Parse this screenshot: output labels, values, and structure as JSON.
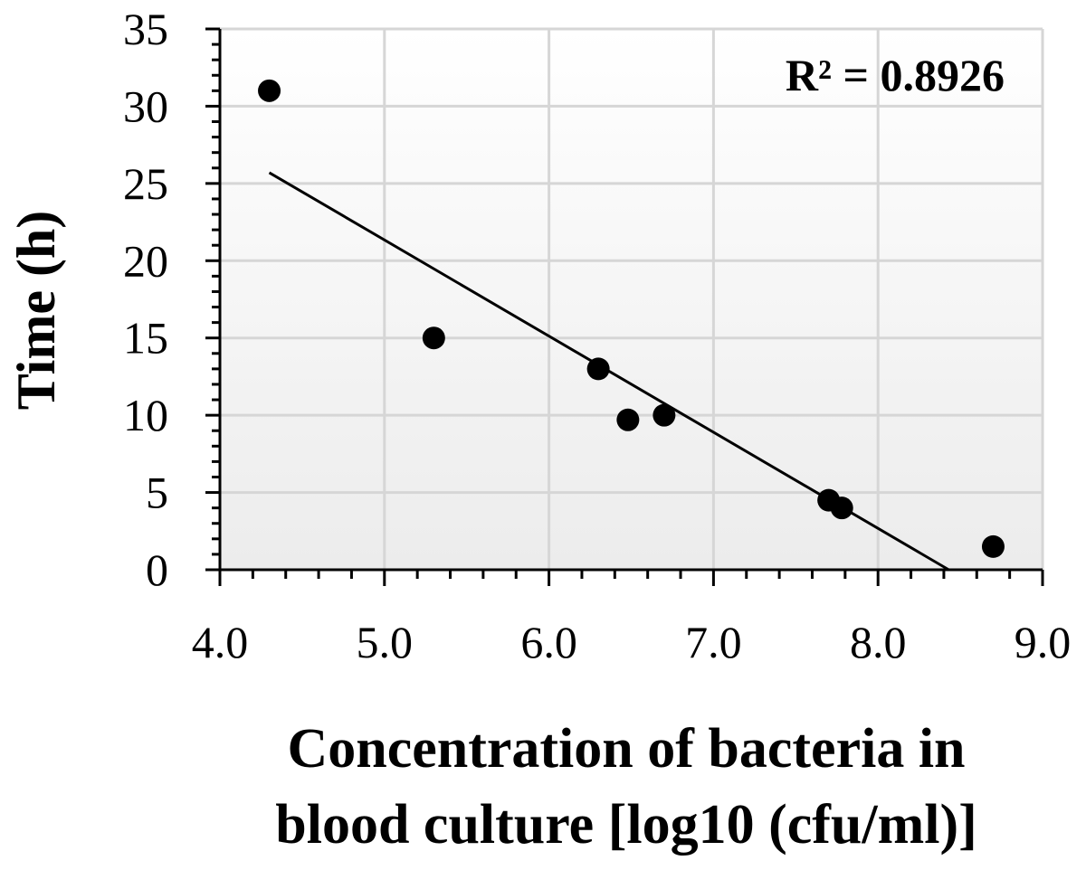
{
  "chart_data": {
    "type": "scatter",
    "xlabel_lines": [
      "Concentration of bacteria in",
      "blood culture [log10 (cfu/ml)]"
    ],
    "ylabel": "Time (h)",
    "xlim": [
      4.0,
      9.0
    ],
    "ylim": [
      0,
      35
    ],
    "x_ticks": [
      "4.0",
      "5.0",
      "6.0",
      "7.0",
      "8.0",
      "9.0"
    ],
    "y_ticks": [
      "0",
      "5",
      "10",
      "15",
      "20",
      "25",
      "30",
      "35"
    ],
    "grid": true,
    "series": [
      {
        "points": [
          {
            "x": 4.3,
            "y": 31.0
          },
          {
            "x": 5.3,
            "y": 15.0
          },
          {
            "x": 6.3,
            "y": 13.0
          },
          {
            "x": 6.48,
            "y": 9.7
          },
          {
            "x": 6.7,
            "y": 10.0
          },
          {
            "x": 7.7,
            "y": 4.5
          },
          {
            "x": 7.78,
            "y": 4.0
          },
          {
            "x": 8.7,
            "y": 1.5
          }
        ]
      }
    ],
    "trendline": {
      "x_start": 4.3,
      "y_start": 25.7,
      "x_end": 8.43,
      "y_end": 0.0
    },
    "annotation": "R² = 0.8926",
    "colors": {
      "points": "#000000",
      "trendline": "#000000",
      "grid": "#d6d6d6",
      "plot_bg_top": "#ffffff",
      "plot_bg_bottom": "#ececec"
    }
  }
}
